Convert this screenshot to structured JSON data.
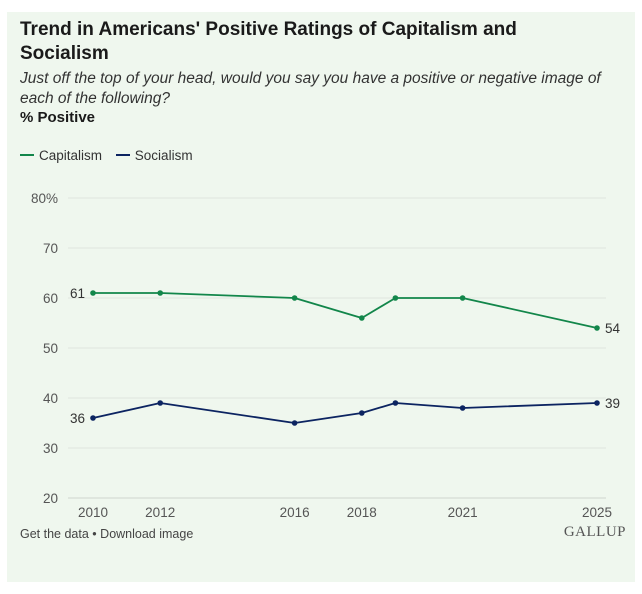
{
  "header": {
    "title": "Trend in Americans' Positive Ratings of Capitalism and Socialism",
    "subtitle": "Just off the top of your head, would you say you have a positive or negative image of each of the following?",
    "unit_label": "% Positive"
  },
  "footer": {
    "get_data": "Get the data",
    "separator": "•",
    "download": "Download image",
    "brand": "GALLUP"
  },
  "colors": {
    "capitalism": "#12864a",
    "socialism": "#0c2461"
  },
  "chart_data": {
    "type": "line",
    "title": "Trend in Americans' Positive Ratings of Capitalism and Socialism",
    "ylabel": "% Positive",
    "xlim": [
      2010,
      2025
    ],
    "ylim": [
      20,
      80
    ],
    "y_ticks": [
      20,
      30,
      40,
      50,
      60,
      70,
      80
    ],
    "y_tick_labels": [
      "20",
      "30",
      "40",
      "50",
      "60",
      "70",
      "80%"
    ],
    "x_ticks": [
      2010,
      2012,
      2016,
      2018,
      2021,
      2025
    ],
    "x_tick_labels": [
      "2010",
      "2012",
      "2016",
      "2018",
      "2021",
      "2025"
    ],
    "grid": "horizontal",
    "legend_position": "top-left",
    "series": [
      {
        "name": "Capitalism",
        "color": "#12864a",
        "points": [
          {
            "x": 2010,
            "y": 61
          },
          {
            "x": 2012,
            "y": 61
          },
          {
            "x": 2016,
            "y": 60
          },
          {
            "x": 2018,
            "y": 56
          },
          {
            "x": 2019,
            "y": 60
          },
          {
            "x": 2021,
            "y": 60
          },
          {
            "x": 2025,
            "y": 54
          }
        ],
        "labels": [
          {
            "x": 2010,
            "text": "61",
            "side": "left"
          },
          {
            "x": 2025,
            "text": "54",
            "side": "right"
          }
        ]
      },
      {
        "name": "Socialism",
        "color": "#0c2461",
        "points": [
          {
            "x": 2010,
            "y": 36
          },
          {
            "x": 2012,
            "y": 39
          },
          {
            "x": 2016,
            "y": 35
          },
          {
            "x": 2018,
            "y": 37
          },
          {
            "x": 2019,
            "y": 39
          },
          {
            "x": 2021,
            "y": 38
          },
          {
            "x": 2025,
            "y": 39
          }
        ],
        "labels": [
          {
            "x": 2010,
            "text": "36",
            "side": "left"
          },
          {
            "x": 2025,
            "text": "39",
            "side": "right"
          }
        ]
      }
    ]
  }
}
